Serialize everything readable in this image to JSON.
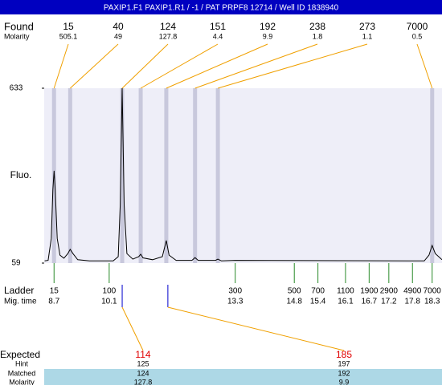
{
  "header": {
    "title": "PAXIP1.F1  PAXIP1.R1 / -1 / PAT PRPF8 12714 / Well ID 1838940"
  },
  "chart_data": {
    "type": "line",
    "y_label": "Fluo.",
    "xlim": [
      8.45,
      18.55
    ],
    "ylim": [
      59,
      633
    ],
    "yticks": [
      59,
      633
    ],
    "trace": {
      "color": "#000000",
      "x": [
        8.46,
        8.55,
        8.63,
        8.67,
        8.7,
        8.73,
        8.78,
        8.85,
        8.95,
        9.05,
        9.11,
        9.18,
        9.3,
        9.6,
        10.2,
        10.33,
        10.38,
        10.43,
        10.48,
        10.55,
        10.7,
        10.85,
        10.9,
        10.96,
        11.2,
        11.45,
        11.55,
        11.62,
        11.8,
        12.2,
        12.28,
        12.36,
        12.8,
        12.86,
        12.95,
        13.3,
        18.1,
        18.22,
        18.3,
        18.38,
        18.55
      ],
      "values": [
        66,
        68,
        140,
        300,
        362,
        300,
        140,
        85,
        75,
        90,
        104,
        90,
        70,
        66,
        66,
        80,
        250,
        633,
        250,
        90,
        72,
        80,
        88,
        76,
        70,
        80,
        133,
        85,
        68,
        68,
        77,
        68,
        68,
        72,
        66,
        68,
        66,
        85,
        117,
        90,
        70
      ]
    },
    "found": {
      "label": "Found",
      "molarity_label": "Molarity",
      "sizes": [
        15,
        40,
        124,
        151,
        192,
        238,
        273,
        7000
      ],
      "molarity": [
        505.1,
        49,
        127.8,
        4.4,
        9.9,
        1.8,
        1.1,
        0.5
      ],
      "x": [
        8.7,
        9.11,
        10.43,
        10.9,
        11.55,
        12.28,
        12.86,
        18.3
      ],
      "band_color": "#c8c8dc",
      "line_color": "#f0a000"
    },
    "ladder": {
      "label": "Ladder",
      "time_label": "Mig. time",
      "sizes": [
        15,
        100,
        300,
        500,
        700,
        1100,
        1900,
        2900,
        4900,
        7000
      ],
      "x": [
        8.7,
        10.1,
        13.3,
        14.8,
        15.4,
        16.1,
        16.7,
        17.2,
        17.8,
        18.3
      ],
      "color": "#2a8a2a"
    },
    "expected": {
      "x": [
        10.43,
        11.59
      ],
      "color": "#0000cc"
    }
  },
  "table": {
    "row_labels": [
      "Expected",
      "Hint",
      "Matched",
      "Molarity"
    ],
    "columns": [
      {
        "expected": 114,
        "hint": 125,
        "matched": 124,
        "molarity": 127.8
      },
      {
        "expected": 185,
        "hint": 197,
        "matched": 192,
        "molarity": 9.9
      }
    ]
  }
}
